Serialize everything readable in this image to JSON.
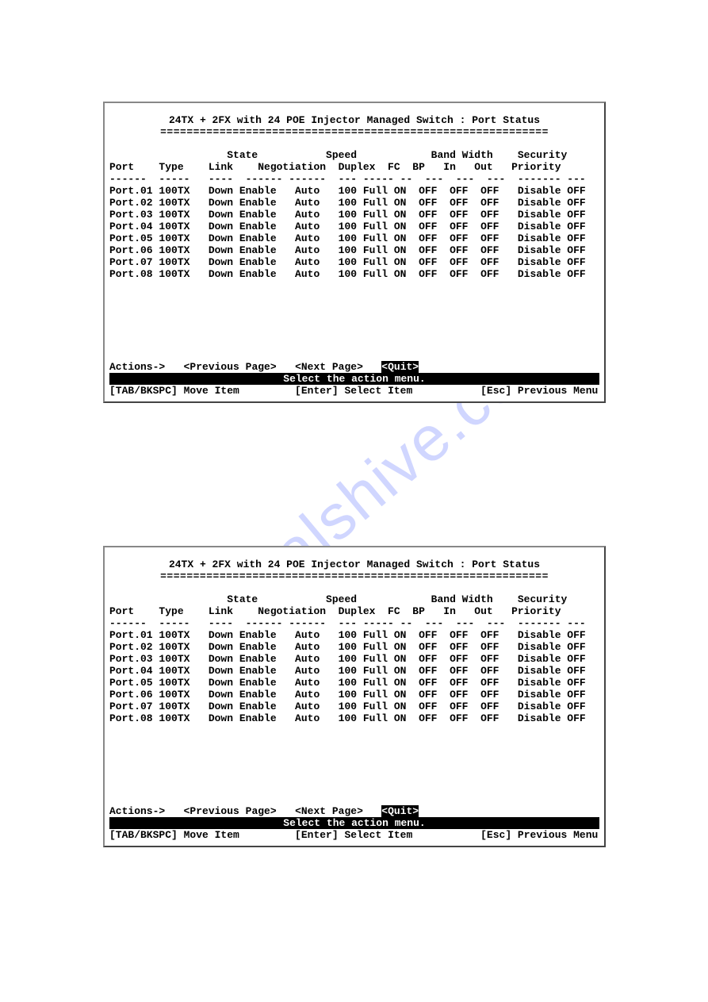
{
  "watermark_text": "manualshive.com",
  "terminals": [
    {
      "title": "24TX + 2FX with 24 POE Injector Managed Switch : Port Status",
      "rule": "===========================================================",
      "header_top": "                   State           Speed            Band Width    Security",
      "header_bottom": "Port    Type    Link    Negotiation  Duplex  FC  BP   In   Out   Priority",
      "header_dashes": "------  -----   ----  ------ ------  --- ----- --  ---  ---  ---  ------- ---",
      "rows": [
        "Port.01 100TX   Down Enable   Auto   100 Full ON  OFF  OFF  OFF   Disable OFF",
        "Port.02 100TX   Down Enable   Auto   100 Full ON  OFF  OFF  OFF   Disable OFF",
        "Port.03 100TX   Down Enable   Auto   100 Full ON  OFF  OFF  OFF   Disable OFF",
        "Port.04 100TX   Down Enable   Auto   100 Full ON  OFF  OFF  OFF   Disable OFF",
        "Port.05 100TX   Down Enable   Auto   100 Full ON  OFF  OFF  OFF   Disable OFF",
        "Port.06 100TX   Down Enable   Auto   100 Full ON  OFF  OFF  OFF   Disable OFF",
        "Port.07 100TX   Down Enable   Auto   100 Full ON  OFF  OFF  OFF   Disable OFF",
        "Port.08 100TX   Down Enable   Auto   100 Full ON  OFF  OFF  OFF   Disable OFF"
      ],
      "actions_label": "Actions->",
      "prev_label": "<Previous Page>",
      "next_label": "<Next Page>",
      "quit_label": "<Quit>",
      "status_text": "Select the action menu.",
      "help_tab": "[TAB/BKSPC] Move Item",
      "help_enter": "[Enter] Select Item",
      "help_esc": "[Esc] Previous Menu"
    },
    {
      "title": "24TX + 2FX with 24 POE Injector Managed Switch : Port Status",
      "rule": "===========================================================",
      "header_top": "                   State           Speed            Band Width    Security",
      "header_bottom": "Port    Type    Link    Negotiation  Duplex  FC  BP   In   Out   Priority",
      "header_dashes": "------  -----   ----  ------ ------  --- ----- --  ---  ---  ---  ------- ---",
      "rows": [
        "Port.01 100TX   Down Enable   Auto   100 Full ON  OFF  OFF  OFF   Disable OFF",
        "Port.02 100TX   Down Enable   Auto   100 Full ON  OFF  OFF  OFF   Disable OFF",
        "Port.03 100TX   Down Enable   Auto   100 Full ON  OFF  OFF  OFF   Disable OFF",
        "Port.04 100TX   Down Enable   Auto   100 Full ON  OFF  OFF  OFF   Disable OFF",
        "Port.05 100TX   Down Enable   Auto   100 Full ON  OFF  OFF  OFF   Disable OFF",
        "Port.06 100TX   Down Enable   Auto   100 Full ON  OFF  OFF  OFF   Disable OFF",
        "Port.07 100TX   Down Enable   Auto   100 Full ON  OFF  OFF  OFF   Disable OFF",
        "Port.08 100TX   Down Enable   Auto   100 Full ON  OFF  OFF  OFF   Disable OFF"
      ],
      "actions_label": "Actions->",
      "prev_label": "<Previous Page>",
      "next_label": "<Next Page>",
      "quit_label": "<Quit>",
      "status_text": "Select the action menu.",
      "help_tab": "[TAB/BKSPC] Move Item",
      "help_enter": "[Enter] Select Item",
      "help_esc": "[Esc] Previous Menu"
    }
  ]
}
